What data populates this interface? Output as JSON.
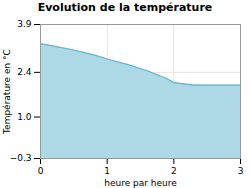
{
  "chart_data": {
    "type": "area",
    "title": "Evolution de la température",
    "x_label": "heure par heure",
    "y_label": "Température en °C",
    "x": [
      0,
      0.2,
      0.5,
      0.8,
      1.0,
      1.3,
      1.6,
      1.9,
      2.0,
      2.3,
      2.6,
      3.0
    ],
    "values": [
      3.3,
      3.22,
      3.1,
      2.95,
      2.82,
      2.65,
      2.45,
      2.2,
      2.08,
      2.0,
      2.0,
      2.0
    ],
    "colors": [
      "#add8e6",
      "#5bb8d4"
    ],
    "xlim": [
      0,
      3
    ],
    "xticks": [
      0,
      1,
      2,
      3
    ],
    "ylim": [
      -0.3,
      3.9
    ],
    "yticks": [
      -0.3,
      {
        "value": 1.0,
        "label": "1.0"
      },
      2.4,
      3.9
    ],
    "grid": true
  }
}
